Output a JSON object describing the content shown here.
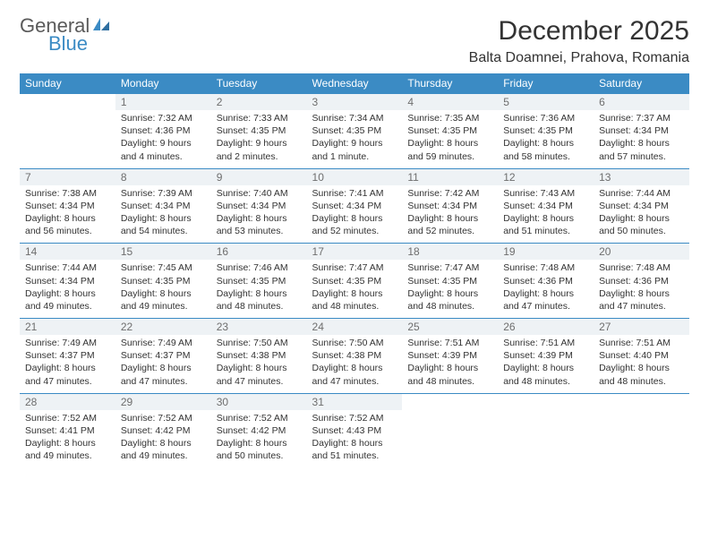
{
  "logo": {
    "line1": "General",
    "line2": "Blue"
  },
  "title": "December 2025",
  "location": "Balta Doamnei, Prahova, Romania",
  "colors": {
    "header_bg": "#3b8bc4",
    "header_text": "#ffffff",
    "daynum_bg": "#eef2f5",
    "daynum_text": "#6e6e6e",
    "border": "#3b8bc4",
    "body_text": "#333333",
    "logo_gray": "#5a5a5a",
    "logo_blue": "#3b8bc4"
  },
  "weekdays": [
    "Sunday",
    "Monday",
    "Tuesday",
    "Wednesday",
    "Thursday",
    "Friday",
    "Saturday"
  ],
  "weeks": [
    {
      "nums": [
        "",
        "1",
        "2",
        "3",
        "4",
        "5",
        "6"
      ],
      "details": [
        "",
        "Sunrise: 7:32 AM\nSunset: 4:36 PM\nDaylight: 9 hours and 4 minutes.",
        "Sunrise: 7:33 AM\nSunset: 4:35 PM\nDaylight: 9 hours and 2 minutes.",
        "Sunrise: 7:34 AM\nSunset: 4:35 PM\nDaylight: 9 hours and 1 minute.",
        "Sunrise: 7:35 AM\nSunset: 4:35 PM\nDaylight: 8 hours and 59 minutes.",
        "Sunrise: 7:36 AM\nSunset: 4:35 PM\nDaylight: 8 hours and 58 minutes.",
        "Sunrise: 7:37 AM\nSunset: 4:34 PM\nDaylight: 8 hours and 57 minutes."
      ]
    },
    {
      "nums": [
        "7",
        "8",
        "9",
        "10",
        "11",
        "12",
        "13"
      ],
      "details": [
        "Sunrise: 7:38 AM\nSunset: 4:34 PM\nDaylight: 8 hours and 56 minutes.",
        "Sunrise: 7:39 AM\nSunset: 4:34 PM\nDaylight: 8 hours and 54 minutes.",
        "Sunrise: 7:40 AM\nSunset: 4:34 PM\nDaylight: 8 hours and 53 minutes.",
        "Sunrise: 7:41 AM\nSunset: 4:34 PM\nDaylight: 8 hours and 52 minutes.",
        "Sunrise: 7:42 AM\nSunset: 4:34 PM\nDaylight: 8 hours and 52 minutes.",
        "Sunrise: 7:43 AM\nSunset: 4:34 PM\nDaylight: 8 hours and 51 minutes.",
        "Sunrise: 7:44 AM\nSunset: 4:34 PM\nDaylight: 8 hours and 50 minutes."
      ]
    },
    {
      "nums": [
        "14",
        "15",
        "16",
        "17",
        "18",
        "19",
        "20"
      ],
      "details": [
        "Sunrise: 7:44 AM\nSunset: 4:34 PM\nDaylight: 8 hours and 49 minutes.",
        "Sunrise: 7:45 AM\nSunset: 4:35 PM\nDaylight: 8 hours and 49 minutes.",
        "Sunrise: 7:46 AM\nSunset: 4:35 PM\nDaylight: 8 hours and 48 minutes.",
        "Sunrise: 7:47 AM\nSunset: 4:35 PM\nDaylight: 8 hours and 48 minutes.",
        "Sunrise: 7:47 AM\nSunset: 4:35 PM\nDaylight: 8 hours and 48 minutes.",
        "Sunrise: 7:48 AM\nSunset: 4:36 PM\nDaylight: 8 hours and 47 minutes.",
        "Sunrise: 7:48 AM\nSunset: 4:36 PM\nDaylight: 8 hours and 47 minutes."
      ]
    },
    {
      "nums": [
        "21",
        "22",
        "23",
        "24",
        "25",
        "26",
        "27"
      ],
      "details": [
        "Sunrise: 7:49 AM\nSunset: 4:37 PM\nDaylight: 8 hours and 47 minutes.",
        "Sunrise: 7:49 AM\nSunset: 4:37 PM\nDaylight: 8 hours and 47 minutes.",
        "Sunrise: 7:50 AM\nSunset: 4:38 PM\nDaylight: 8 hours and 47 minutes.",
        "Sunrise: 7:50 AM\nSunset: 4:38 PM\nDaylight: 8 hours and 47 minutes.",
        "Sunrise: 7:51 AM\nSunset: 4:39 PM\nDaylight: 8 hours and 48 minutes.",
        "Sunrise: 7:51 AM\nSunset: 4:39 PM\nDaylight: 8 hours and 48 minutes.",
        "Sunrise: 7:51 AM\nSunset: 4:40 PM\nDaylight: 8 hours and 48 minutes."
      ]
    },
    {
      "nums": [
        "28",
        "29",
        "30",
        "31",
        "",
        "",
        ""
      ],
      "details": [
        "Sunrise: 7:52 AM\nSunset: 4:41 PM\nDaylight: 8 hours and 49 minutes.",
        "Sunrise: 7:52 AM\nSunset: 4:42 PM\nDaylight: 8 hours and 49 minutes.",
        "Sunrise: 7:52 AM\nSunset: 4:42 PM\nDaylight: 8 hours and 50 minutes.",
        "Sunrise: 7:52 AM\nSunset: 4:43 PM\nDaylight: 8 hours and 51 minutes.",
        "",
        "",
        ""
      ]
    }
  ]
}
